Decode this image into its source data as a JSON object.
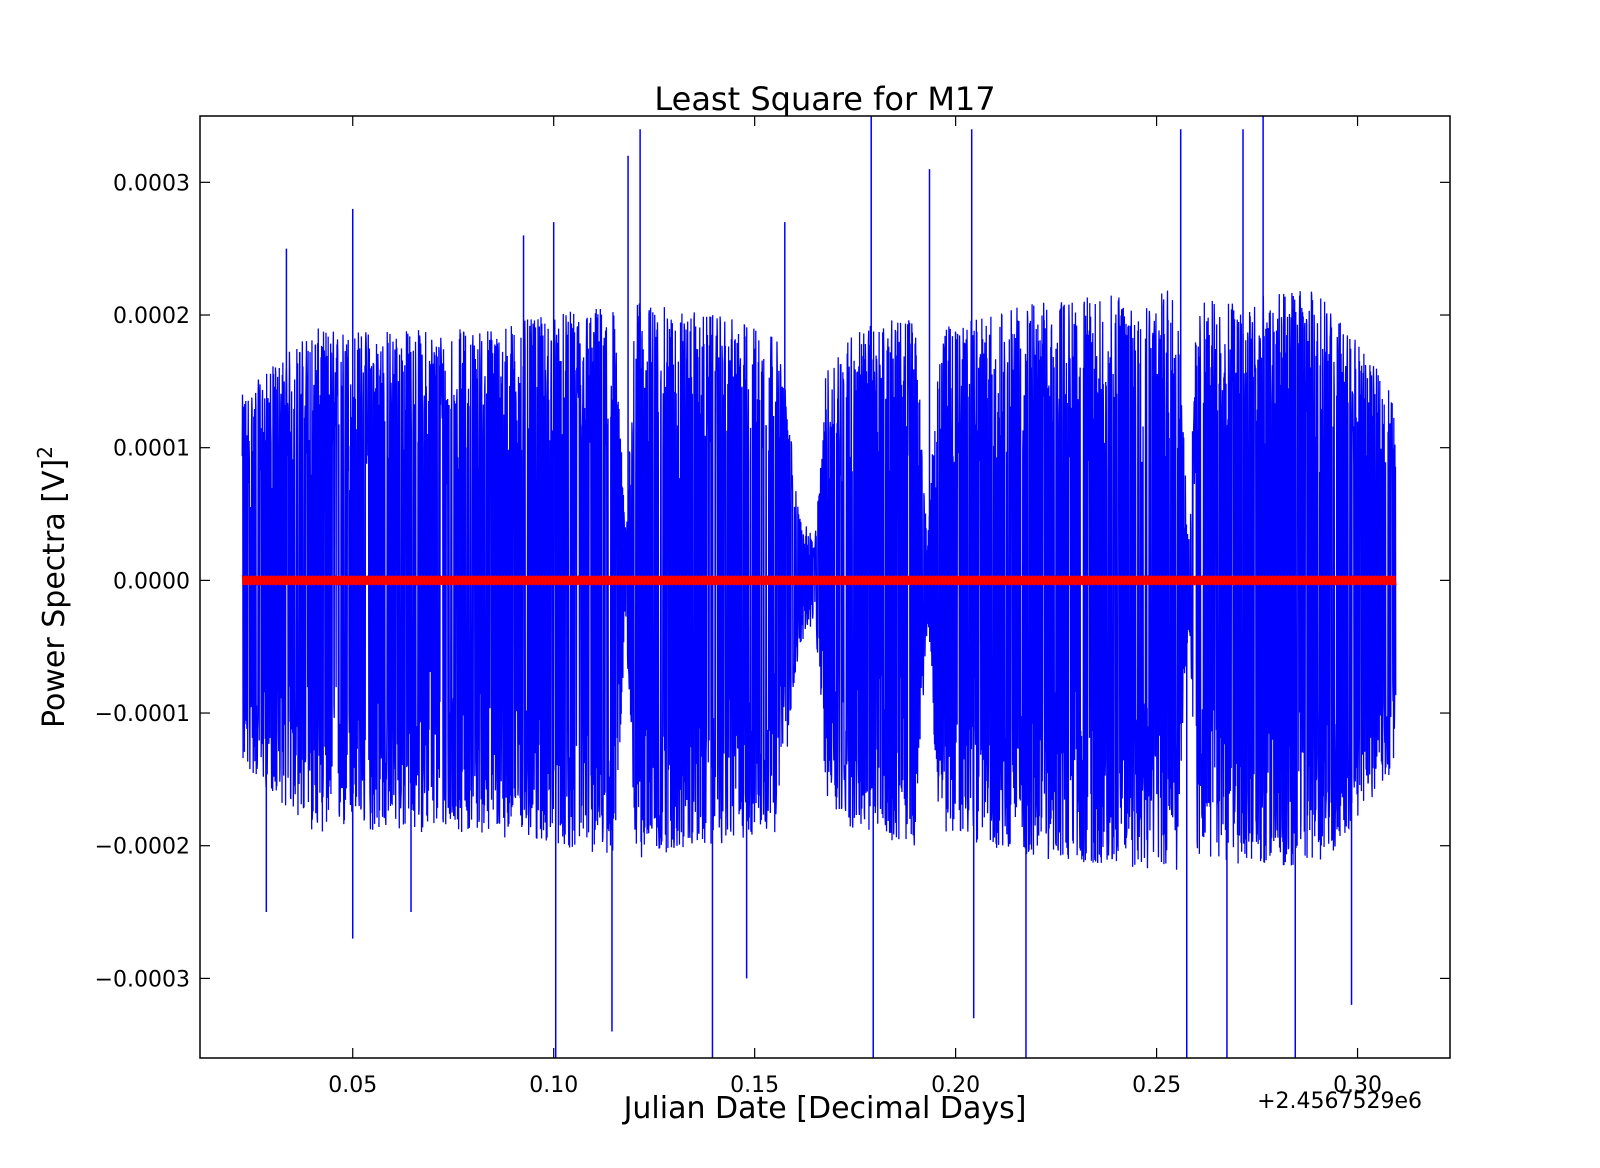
{
  "chart_data": {
    "type": "line",
    "title": "Least Square for M17",
    "xlabel": "Julian Date [Decimal Days]",
    "ylabel": "Power Spectra [V]",
    "ylabel_superscript": "2",
    "x_offset_label": "+2.4567529e6",
    "xlim": [
      0.012,
      0.323
    ],
    "ylim": [
      -0.00036,
      0.00035
    ],
    "x_ticks": [
      0.05,
      0.1,
      0.15,
      0.2,
      0.25,
      0.3
    ],
    "x_tick_labels": [
      "0.05",
      "0.10",
      "0.15",
      "0.20",
      "0.25",
      "0.30"
    ],
    "y_ticks": [
      0.0003,
      0.0002,
      0.0001,
      0.0,
      -0.0001,
      -0.0002,
      -0.0003
    ],
    "y_tick_labels": [
      "0.0003",
      "0.0002",
      "0.0001",
      "0.0000",
      "−0.0001",
      "−0.0002",
      "−0.0003"
    ],
    "grid": false,
    "series": [
      {
        "color": "#0000ff",
        "style": "noise-line",
        "x_range": [
          0.0225,
          0.3095
        ],
        "envelope": {
          "x": [
            0.0225,
            0.04,
            0.08,
            0.1,
            0.115,
            0.118,
            0.12,
            0.14,
            0.155,
            0.158,
            0.161,
            0.165,
            0.168,
            0.175,
            0.19,
            0.193,
            0.196,
            0.22,
            0.255,
            0.258,
            0.26,
            0.29,
            0.3095
          ],
          "upper": [
            0.00014,
            0.00019,
            0.00019,
            0.0002,
            0.00021,
            3e-05,
            0.00021,
            0.0002,
            0.00019,
            0.00014,
            5e-05,
            3e-05,
            0.00017,
            0.00019,
            0.0002,
            3e-05,
            0.00019,
            0.00021,
            0.00022,
            3e-05,
            0.00021,
            0.00022,
            0.00014
          ],
          "lower": [
            -0.00014,
            -0.00019,
            -0.00019,
            -0.0002,
            -0.00021,
            -3e-05,
            -0.00021,
            -0.0002,
            -0.00019,
            -0.00014,
            -5e-05,
            -3e-05,
            -0.00017,
            -0.00019,
            -0.0002,
            -3e-05,
            -0.00019,
            -0.00021,
            -0.00022,
            -3e-05,
            -0.00021,
            -0.00022,
            -0.00014
          ]
        },
        "spikes": [
          {
            "x": 0.0335,
            "y": 0.00025
          },
          {
            "x": 0.05,
            "y": 0.00028
          },
          {
            "x": 0.0925,
            "y": 0.00026
          },
          {
            "x": 0.1,
            "y": 0.00027
          },
          {
            "x": 0.1185,
            "y": 0.00032
          },
          {
            "x": 0.1215,
            "y": 0.00034
          },
          {
            "x": 0.1575,
            "y": 0.00027
          },
          {
            "x": 0.179,
            "y": 0.00035
          },
          {
            "x": 0.1935,
            "y": 0.00031
          },
          {
            "x": 0.204,
            "y": 0.00034
          },
          {
            "x": 0.256,
            "y": 0.00034
          },
          {
            "x": 0.2765,
            "y": 0.00035
          },
          {
            "x": 0.2715,
            "y": 0.00034
          },
          {
            "x": 0.0285,
            "y": -0.00025
          },
          {
            "x": 0.05,
            "y": -0.00027
          },
          {
            "x": 0.0645,
            "y": -0.00025
          },
          {
            "x": 0.1005,
            "y": -0.00036
          },
          {
            "x": 0.1145,
            "y": -0.00034
          },
          {
            "x": 0.1395,
            "y": -0.00036
          },
          {
            "x": 0.148,
            "y": -0.0003
          },
          {
            "x": 0.1795,
            "y": -0.00036
          },
          {
            "x": 0.2045,
            "y": -0.00033
          },
          {
            "x": 0.2175,
            "y": -0.00036
          },
          {
            "x": 0.2575,
            "y": -0.00036
          },
          {
            "x": 0.2675,
            "y": -0.00036
          },
          {
            "x": 0.2845,
            "y": -0.00036
          },
          {
            "x": 0.2985,
            "y": -0.00032
          }
        ]
      },
      {
        "color": "#ff0000",
        "style": "marker-line",
        "x_range": [
          0.0225,
          0.3095
        ],
        "values": [
          0.0,
          0.0
        ]
      }
    ]
  }
}
